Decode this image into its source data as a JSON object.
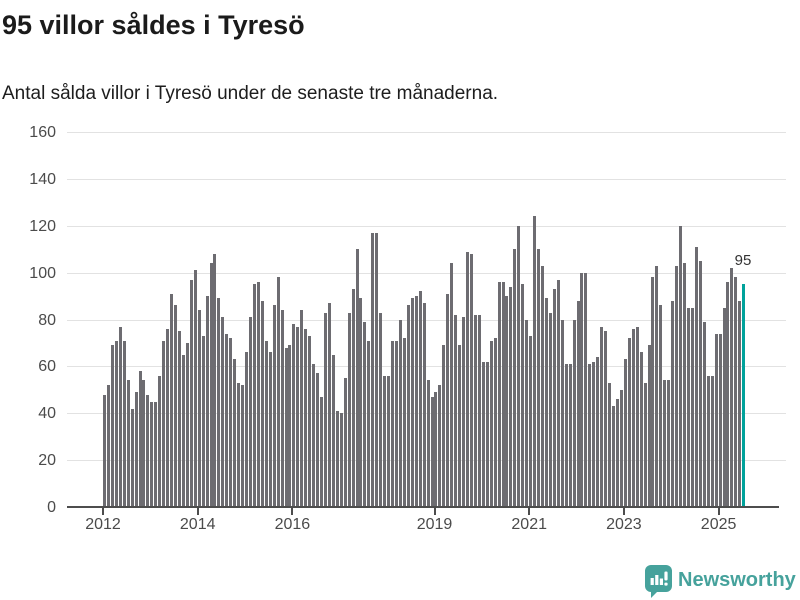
{
  "header": {
    "title": "95 villor såldes i Tyresö",
    "subtitle": "Antal sålda villor i Tyresö under de senaste tre månaderna."
  },
  "chart_data": {
    "type": "bar",
    "title": "95 villor såldes i Tyresö",
    "subtitle": "Antal sålda villor i Tyresö under de senaste tre månaderna.",
    "x_unit": "month",
    "x_range": [
      "2012",
      "2025"
    ],
    "ylim": [
      0,
      160
    ],
    "grid": true,
    "y_axis": {
      "ticks": [
        0,
        20,
        40,
        60,
        80,
        100,
        120,
        140,
        160
      ]
    },
    "x_axis": {
      "tick_labels": [
        "2012",
        "2014",
        "2016",
        "2019",
        "2021",
        "2023",
        "2025"
      ],
      "start_year": 2012
    },
    "bar_color": "#6d6c71",
    "values": [
      48,
      52,
      69,
      71,
      77,
      71,
      54,
      42,
      49,
      58,
      54,
      48,
      45,
      45,
      56,
      71,
      76,
      91,
      86,
      75,
      65,
      70,
      97,
      101,
      84,
      73,
      90,
      104,
      108,
      89,
      81,
      74,
      72,
      63,
      53,
      52,
      66,
      81,
      95,
      96,
      88,
      71,
      66,
      86,
      98,
      84,
      68,
      69,
      78,
      77,
      84,
      76,
      73,
      61,
      57,
      47,
      83,
      87,
      65,
      41,
      40,
      55,
      83,
      93,
      110,
      89,
      79,
      71,
      117,
      117,
      83,
      56,
      56,
      71,
      71,
      80,
      72,
      86,
      89,
      90,
      92,
      87,
      54,
      47,
      49,
      52,
      69,
      91,
      104,
      82,
      69,
      81,
      109,
      108,
      82,
      82,
      62,
      62,
      71,
      72,
      96,
      96,
      90,
      94,
      110,
      120,
      95,
      80,
      73,
      124,
      110,
      103,
      89,
      83,
      93,
      97,
      80,
      61,
      61,
      80,
      88,
      100,
      100,
      61,
      62,
      64,
      77,
      75,
      53,
      43,
      46,
      50,
      63,
      72,
      76,
      77,
      66,
      53,
      69,
      98,
      103,
      86,
      54,
      54,
      88,
      103,
      120,
      104,
      85,
      85,
      111,
      105,
      79,
      56,
      56,
      74,
      74,
      85,
      96,
      102,
      98,
      88,
      95
    ],
    "highlight": {
      "position": "last",
      "value": 95,
      "label": "95",
      "color": "#00a29b"
    }
  },
  "footer": {
    "brand": "Newsworthy",
    "brand_color": "#46a29c"
  }
}
